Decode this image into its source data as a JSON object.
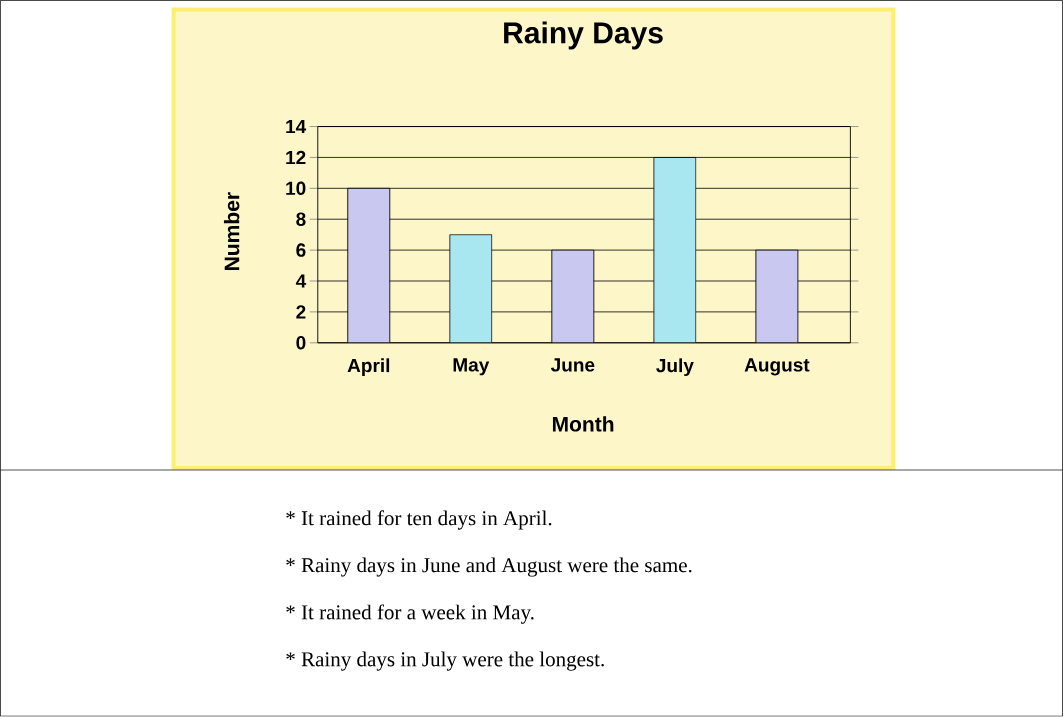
{
  "chart_data": {
    "type": "bar",
    "title": "Rainy Days",
    "xlabel": "Month",
    "ylabel": "Number",
    "categories": [
      "April",
      "May",
      "June",
      "July",
      "August"
    ],
    "values": [
      10,
      7,
      6,
      12,
      6
    ],
    "colors": [
      "#c8c8f0",
      "#a8e6f0",
      "#c8c8f0",
      "#a8e6f0",
      "#c8c8f0"
    ],
    "ylim": [
      0,
      14
    ],
    "yticks": [
      0,
      2,
      4,
      6,
      8,
      10,
      12,
      14
    ],
    "grid": "y",
    "annotations": [
      "* It rained for ten days in April.",
      "* Rainy days in June and August were the same.",
      "* It rained for a week in May.",
      "* Rainy days in July were the longest."
    ]
  }
}
